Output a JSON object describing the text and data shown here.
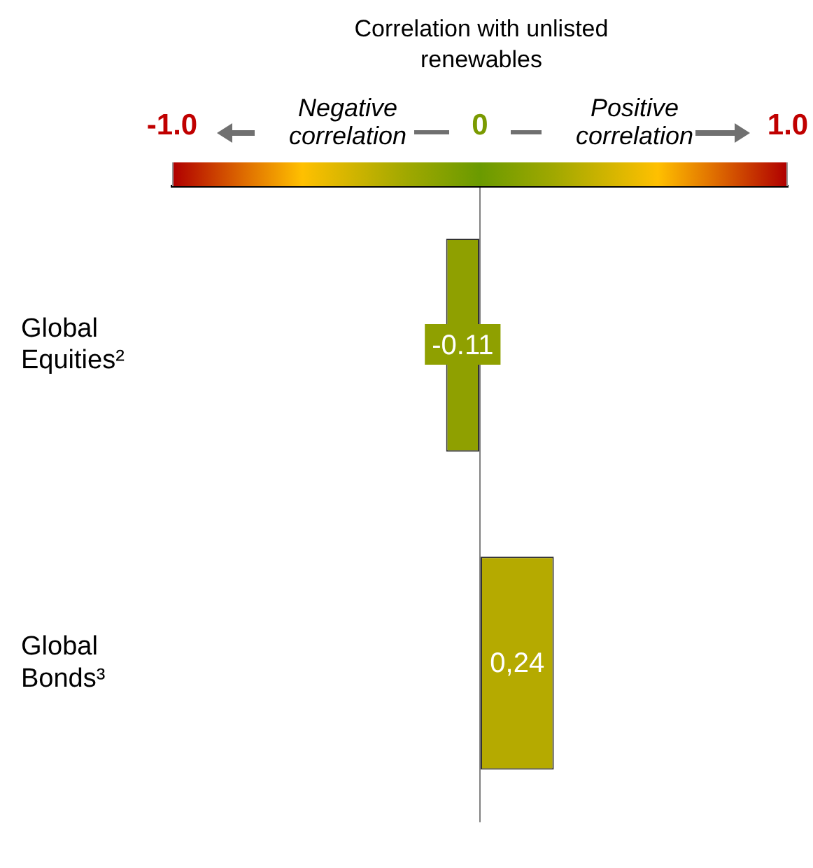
{
  "chart_data": {
    "type": "bar",
    "orientation": "horizontal",
    "title": "Correlation with unlisted renewables",
    "categories": [
      "Global Equities²",
      "Global Bonds³"
    ],
    "values": [
      -0.11,
      0.24
    ],
    "colors": [
      "#8fa000",
      "#b5aa00"
    ],
    "value_labels": [
      "-0.11",
      "0,24"
    ],
    "xlim": [
      -1,
      1
    ],
    "xticks": [
      {
        "value": -1,
        "label": "-1.0"
      },
      0,
      {
        "value": 1,
        "label": "1.0"
      }
    ],
    "annotations": [
      "Negative correlation",
      "Positive correlation"
    ]
  }
}
